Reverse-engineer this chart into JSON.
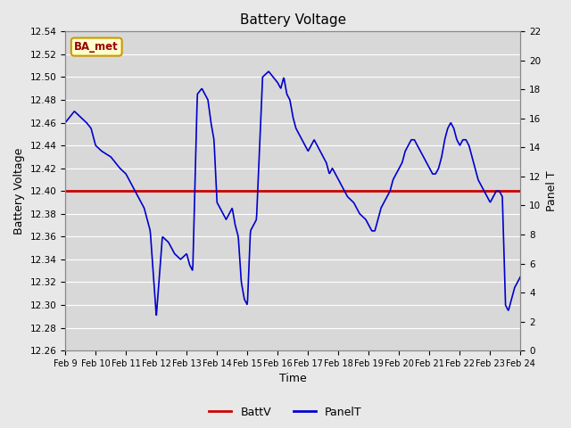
{
  "title": "Battery Voltage",
  "xlabel": "Time",
  "ylabel_left": "Battery Voltage",
  "ylabel_right": "Panel T",
  "ylim_left": [
    12.26,
    12.54
  ],
  "ylim_right": [
    0,
    22
  ],
  "yticks_left": [
    12.26,
    12.28,
    12.3,
    12.32,
    12.34,
    12.36,
    12.38,
    12.4,
    12.42,
    12.44,
    12.46,
    12.48,
    12.5,
    12.52,
    12.54
  ],
  "yticks_right": [
    0,
    2,
    4,
    6,
    8,
    10,
    12,
    14,
    16,
    18,
    20,
    22
  ],
  "xtick_labels": [
    "Feb 9",
    "Feb 10",
    "Feb 11",
    "Feb 12",
    "Feb 13",
    "Feb 14",
    "Feb 15",
    "Feb 16",
    "Feb 17",
    "Feb 18",
    "Feb 19",
    "Feb 20",
    "Feb 21",
    "Feb 22",
    "Feb 23",
    "Feb 24"
  ],
  "battv_value": 12.4,
  "battv_color": "#cc0000",
  "panelt_color": "#0000cc",
  "bg_color": "#e8e8e8",
  "plot_bg_color": "#d8d8d8",
  "grid_color": "#ffffff",
  "legend_battv": "BattV",
  "legend_panelt": "PanelT",
  "annotation_text": "BA_met",
  "annotation_bg": "#ffffcc",
  "annotation_border": "#cc9900",
  "key_x": [
    0,
    0.15,
    0.3,
    0.5,
    0.7,
    0.85,
    1.0,
    1.2,
    1.5,
    1.8,
    2.0,
    2.2,
    2.4,
    2.6,
    2.8,
    3.0,
    3.2,
    3.4,
    3.6,
    3.8,
    4.0,
    4.1,
    4.2,
    4.35,
    4.5,
    4.6,
    4.7,
    4.8,
    4.9,
    5.0,
    5.1,
    5.2,
    5.3,
    5.4,
    5.5,
    5.6,
    5.7,
    5.8,
    5.9,
    6.0,
    6.1,
    6.2,
    6.3,
    6.5,
    6.7,
    6.85,
    7.0,
    7.1,
    7.2,
    7.3,
    7.4,
    7.5,
    7.6,
    7.7,
    7.8,
    7.9,
    8.0,
    8.1,
    8.2,
    8.3,
    8.4,
    8.5,
    8.6,
    8.7,
    8.8,
    8.9,
    9.0,
    9.1,
    9.2,
    9.3,
    9.5,
    9.7,
    9.9,
    10.0,
    10.1,
    10.2,
    10.3,
    10.4,
    10.5,
    10.6,
    10.7,
    10.8,
    10.9,
    11.0,
    11.1,
    11.2,
    11.3,
    11.4,
    11.5,
    11.6,
    11.7,
    11.8,
    11.9,
    12.0,
    12.1,
    12.2,
    12.3,
    12.4,
    12.5,
    12.6,
    12.7,
    12.8,
    12.9,
    13.0,
    13.1,
    13.2,
    13.3,
    13.4,
    13.5,
    13.6,
    13.7,
    13.8,
    13.9,
    14.0,
    14.1,
    14.2,
    14.3,
    14.4,
    14.5,
    14.6,
    14.7,
    14.8,
    14.9,
    15.0
  ],
  "key_y": [
    12.46,
    12.465,
    12.47,
    12.465,
    12.46,
    12.455,
    12.44,
    12.435,
    12.43,
    12.42,
    12.415,
    12.405,
    12.395,
    12.385,
    12.365,
    12.29,
    12.36,
    12.355,
    12.345,
    12.34,
    12.345,
    12.335,
    12.33,
    12.485,
    12.49,
    12.485,
    12.48,
    12.46,
    12.445,
    12.39,
    12.385,
    12.38,
    12.375,
    12.38,
    12.385,
    12.37,
    12.36,
    12.32,
    12.305,
    12.3,
    12.365,
    12.37,
    12.375,
    12.5,
    12.505,
    12.5,
    12.495,
    12.49,
    12.5,
    12.485,
    12.48,
    12.465,
    12.455,
    12.45,
    12.445,
    12.44,
    12.435,
    12.44,
    12.445,
    12.44,
    12.435,
    12.43,
    12.425,
    12.415,
    12.42,
    12.415,
    12.41,
    12.405,
    12.4,
    12.395,
    12.39,
    12.38,
    12.375,
    12.37,
    12.365,
    12.365,
    12.375,
    12.385,
    12.39,
    12.395,
    12.4,
    12.41,
    12.415,
    12.42,
    12.425,
    12.435,
    12.44,
    12.445,
    12.445,
    12.44,
    12.435,
    12.43,
    12.425,
    12.42,
    12.415,
    12.415,
    12.42,
    12.43,
    12.445,
    12.455,
    12.46,
    12.455,
    12.445,
    12.44,
    12.445,
    12.445,
    12.44,
    12.43,
    12.42,
    12.41,
    12.405,
    12.4,
    12.395,
    12.39,
    12.395,
    12.4,
    12.4,
    12.395,
    12.3,
    12.295,
    12.305,
    12.315,
    12.32,
    12.325
  ]
}
